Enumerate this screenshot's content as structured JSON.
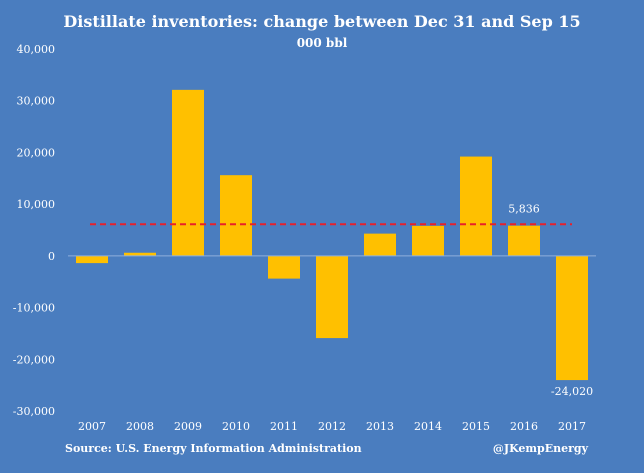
{
  "chart_data": {
    "type": "bar",
    "title": "Distillate inventories: change between Dec 31 and Sep 15",
    "subtitle": "000 bbl",
    "categories": [
      "2007",
      "2008",
      "2009",
      "2010",
      "2011",
      "2012",
      "2013",
      "2014",
      "2015",
      "2016",
      "2017"
    ],
    "values": [
      -1400,
      600,
      32100,
      15600,
      -4400,
      -15900,
      4300,
      5800,
      19200,
      5836,
      -24020
    ],
    "ylim": [
      -30000,
      40000
    ],
    "yticks": [
      -30000,
      -20000,
      -10000,
      0,
      10000,
      20000,
      30000,
      40000
    ],
    "ytick_labels": [
      "-30,000",
      "-20,000",
      "-10,000",
      "0",
      "10,000",
      "20,000",
      "30,000",
      "40,000"
    ],
    "reference_line": {
      "value": 6100,
      "style": "dashed",
      "color": "#e8202a"
    },
    "data_labels": [
      {
        "category": "2016",
        "text": "5,836"
      },
      {
        "category": "2017",
        "text": "-24,020"
      }
    ],
    "bar_color": "#ffc000",
    "background_color": "#4a7dbf",
    "grid": false,
    "legend": "none"
  },
  "footer": {
    "source": "Source: U.S. Energy Information Administration",
    "credit": "@JKempEnergy"
  }
}
